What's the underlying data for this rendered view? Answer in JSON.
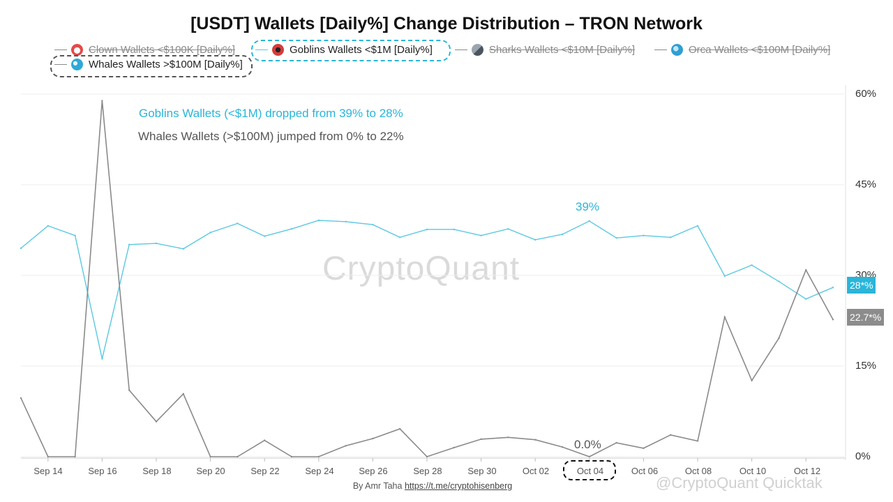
{
  "title": "[USDT] Wallets [Daily%] Change Distribution – TRON Network",
  "legend": [
    {
      "label": "Clown Wallets <$100K [Daily%]",
      "icon": "clown-icon",
      "active": false,
      "color": "#ff6b6b"
    },
    {
      "label": "Goblins Wallets <$1M [Daily%]",
      "icon": "goblin-icon",
      "active": true,
      "color": "#d63b3b"
    },
    {
      "label": "Sharks Wallets <$10M [Daily%]",
      "icon": "shark-icon",
      "active": false,
      "color": "#6c7a89"
    },
    {
      "label": "Orca Wallets <$100M [Daily%]",
      "icon": "orca-icon",
      "active": false,
      "color": "#3a9fd6"
    },
    {
      "label": "Whales Wallets >$100M [Daily%]",
      "icon": "whale-icon",
      "active": true,
      "color": "#2fa8d8"
    }
  ],
  "annotations": {
    "goblins": "Goblins Wallets (<$1M) dropped from 39% to 28%",
    "whales": "Whales Wallets (>$100M) jumped from 0% to 22%",
    "peak_label": "39%",
    "zero_label": "0.0%"
  },
  "badges": {
    "goblins": "28*%",
    "whales": "22.7*%"
  },
  "watermark": "CryptoQuant",
  "watermark2": "@CryptoQuant Quicktak",
  "footer": {
    "author": "By Amr Taha",
    "link": "https://t.me/cryptohisenberg"
  },
  "colors": {
    "goblins": "#5bc8e2",
    "whales": "#8a8a8a",
    "goblins_badge": "#2ab5d9",
    "whales_badge": "#8c8c8c"
  },
  "chart_data": {
    "type": "line",
    "title": "[USDT] Wallets [Daily%] Change Distribution – TRON Network",
    "x": [
      "Sep 13",
      "Sep 14",
      "Sep 15",
      "Sep 16",
      "Sep 17",
      "Sep 18",
      "Sep 19",
      "Sep 20",
      "Sep 21",
      "Sep 22",
      "Sep 23",
      "Sep 24",
      "Sep 25",
      "Sep 26",
      "Sep 27",
      "Sep 28",
      "Sep 29",
      "Sep 30",
      "Oct 01",
      "Oct 02",
      "Oct 03",
      "Oct 04",
      "Oct 05",
      "Oct 06",
      "Oct 07",
      "Oct 08",
      "Oct 09",
      "Oct 10",
      "Oct 11",
      "Oct 12",
      "Oct 13"
    ],
    "x_tick_labels": [
      "Sep 14",
      "Sep 16",
      "Sep 18",
      "Sep 20",
      "Sep 22",
      "Sep 24",
      "Sep 26",
      "Sep 28",
      "Sep 30",
      "Oct 02",
      "Oct 04",
      "Oct 06",
      "Oct 08",
      "Oct 10",
      "Oct 12"
    ],
    "y_ticks": [
      "60%",
      "45%",
      "30%",
      "15%",
      "0%"
    ],
    "y_tick_values": [
      60,
      45,
      30,
      15,
      0
    ],
    "ylim": [
      0,
      60
    ],
    "series": [
      {
        "name": "Goblins Wallets <$1M [Daily%]",
        "values": [
          34.5,
          38.2,
          36.6,
          16.2,
          35.1,
          35.3,
          34.4,
          37.1,
          38.6,
          36.5,
          37.7,
          39.1,
          38.9,
          38.4,
          36.3,
          37.6,
          37.6,
          36.6,
          37.7,
          35.9,
          36.8,
          39.0,
          36.2,
          36.6,
          36.3,
          38.2,
          29.9,
          31.7,
          29.0,
          26.1,
          28.0
        ]
      },
      {
        "name": "Whales Wallets >$100M [Daily%]",
        "values": [
          9.7,
          0,
          0,
          58.9,
          11.0,
          5.8,
          10.4,
          0,
          0,
          2.7,
          0,
          0,
          1.8,
          3.0,
          4.6,
          0,
          1.5,
          2.9,
          3.2,
          2.8,
          1.6,
          0,
          2.3,
          1.4,
          3.6,
          2.6,
          23.1,
          12.6,
          19.6,
          30.9,
          22.7
        ]
      }
    ]
  }
}
